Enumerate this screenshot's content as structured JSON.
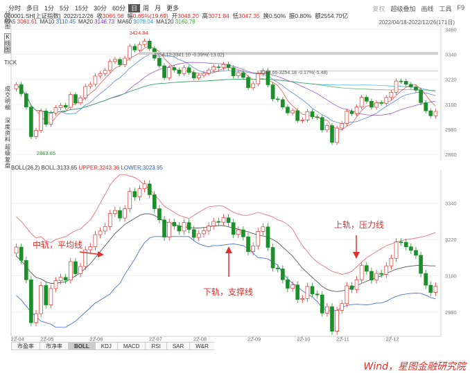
{
  "toolbar": {
    "timeframes": [
      "分时",
      "多日",
      "1分",
      "5分",
      "15分",
      "30分",
      "60分",
      "日",
      "周",
      "月",
      "更多"
    ],
    "active": "日",
    "right": [
      "复权",
      "超级叠加",
      "画线",
      "工具",
      "F9"
    ]
  },
  "info": {
    "code": "000001.SH[上证指数]",
    "date": "2022/12/26",
    "close_label": "收",
    "close": "3065.56",
    "change_label": "幅",
    "change": "0.65%(19.69)",
    "open_label": "开",
    "open": "3048.20",
    "high_label": "高",
    "high": "3071.84",
    "low_label": "低",
    "low": "3047.35",
    "turnover_label": "换",
    "turnover": "0.50%",
    "amp_label": "振",
    "amp": "0.80%",
    "amount_label": "额",
    "amount": "2554.70亿"
  },
  "ma": [
    {
      "label": "MA5",
      "value": "3061.61",
      "color": "#e0312a"
    },
    {
      "label": "MA10",
      "value": "3110.45",
      "color": "#2b6cc4"
    },
    {
      "label": "MA20",
      "value": "3146.73",
      "color": "#7a33b5"
    },
    {
      "label": "MA60",
      "value": "3078.04",
      "color": "#1aa3c9"
    },
    {
      "label": "MA120",
      "value": "3160.78",
      "color": "#3aa33a"
    }
  ],
  "date_range": "2022/04/18-2022/12/26(171日)",
  "side_labels": [
    "分时图",
    "K线图",
    "TICK",
    "成交明细",
    "深度资料",
    "超级复盘"
  ],
  "boll_header": {
    "name": "BOLL(26,2)",
    "boll_label": "BOLL:",
    "boll": "3133.65",
    "upper_label": "UPPER:",
    "upper": "3243.36",
    "lower_label": "LOWER:",
    "lower": "3023.95"
  },
  "price_annotations": {
    "high": "3424.84",
    "low": "2863.65",
    "range1": "3354.12-3341.10 -0.39%(-13.02)",
    "range2": "3269.66-3254.18 -0.17%(-5.48)"
  },
  "annotations": {
    "mid": "中轨，平均线",
    "lower": "下轨，支撑线",
    "upper": "上轨，压力线"
  },
  "tabs": [
    "市盈率",
    "市净率",
    "BOLL",
    "KDJ",
    "MACD",
    "RSI",
    "SAR",
    "W&R"
  ],
  "active_tab": "BOLL",
  "footer": "Wind，星图金融研究院",
  "colors": {
    "up": "#e0312a",
    "down": "#1c8f2a",
    "upper": "#e8707a",
    "mid": "#555555",
    "lower": "#4a72d6"
  },
  "chart_data": [
    {
      "type": "candlestick",
      "title": "",
      "yticks": [
        2860,
        2980,
        3100,
        3220,
        3340,
        3460
      ],
      "ylim": [
        2830,
        3475
      ],
      "x_ticks": [
        "22-04",
        "22-05",
        "22-06",
        "22-07",
        "22-08",
        "22-09",
        "22-10",
        "22-11",
        "22-12"
      ],
      "x": [
        "04-18",
        "04-20",
        "04-22",
        "04-26",
        "04-28",
        "05-05",
        "05-09",
        "05-11",
        "05-13",
        "05-17",
        "05-19",
        "05-23",
        "05-25",
        "05-27",
        "05-31",
        "06-02",
        "06-07",
        "06-09",
        "06-13",
        "06-15",
        "06-17",
        "06-21",
        "06-23",
        "06-27",
        "06-29",
        "07-01",
        "07-05",
        "07-07",
        "07-11",
        "07-13",
        "07-15",
        "07-19",
        "07-21",
        "07-25",
        "07-27",
        "07-29",
        "08-02",
        "08-04",
        "08-08",
        "08-10",
        "08-12",
        "08-16",
        "08-18",
        "08-22",
        "08-24",
        "08-26",
        "08-30",
        "09-01",
        "09-05",
        "09-07",
        "09-09",
        "09-14",
        "09-16",
        "09-20",
        "09-22",
        "09-26",
        "09-28",
        "10-10",
        "10-12",
        "10-14",
        "10-18",
        "10-20",
        "10-24",
        "10-26",
        "10-28",
        "11-01",
        "11-03",
        "11-07",
        "11-09",
        "11-11",
        "11-15",
        "11-17",
        "11-21",
        "11-23",
        "11-25",
        "11-29",
        "12-01",
        "12-05",
        "12-07",
        "12-09",
        "12-13",
        "12-15",
        "12-19",
        "12-21",
        "12-23",
        "12-26"
      ],
      "close": [
        3195,
        3151,
        3087,
        2945,
        2975,
        3068,
        3004,
        3058,
        3084,
        3095,
        3086,
        3147,
        3107,
        3131,
        3186,
        3196,
        3236,
        3248,
        3263,
        3306,
        3316,
        3291,
        3322,
        3379,
        3361,
        3388,
        3404,
        3368,
        3322,
        3285,
        3228,
        3277,
        3265,
        3248,
        3276,
        3253,
        3227,
        3239,
        3249,
        3265,
        3280,
        3277,
        3292,
        3276,
        3237,
        3252,
        3229,
        3180,
        3199,
        3247,
        3262,
        3194,
        3126,
        3123,
        3087,
        3059,
        3070,
        3022,
        3025,
        3065,
        3040,
        3037,
        2977,
        2998,
        2917,
        2986,
        3008,
        3067,
        3055,
        3087,
        3134,
        3115,
        3086,
        3108,
        3105,
        3133,
        3158,
        3212,
        3211,
        3196,
        3184,
        3168,
        3108,
        3069,
        3045,
        3066
      ],
      "high": 3424.84,
      "low": 2863.65
    },
    {
      "type": "line",
      "title": "BOLL(26,2)",
      "yticks": [
        2980,
        3100,
        3220,
        3340
      ],
      "ylim": [
        2900,
        3440
      ],
      "series": [
        {
          "name": "UPPER",
          "values": [
            3295,
            3280,
            3260,
            3240,
            3225,
            3230,
            3215,
            3210,
            3220,
            3225,
            3230,
            3240,
            3250,
            3255,
            3270,
            3285,
            3310,
            3340,
            3370,
            3400,
            3420,
            3435,
            3435,
            3430,
            3425,
            3415,
            3400,
            3385,
            3370,
            3350,
            3330,
            3320,
            3310,
            3300,
            3295,
            3290,
            3300,
            3310,
            3320,
            3328,
            3330,
            3332,
            3330,
            3320,
            3310,
            3305,
            3300,
            3300,
            3305,
            3310,
            3305,
            3300,
            3295,
            3285,
            3280,
            3270,
            3255,
            3225,
            3200,
            3180,
            3160,
            3145,
            3135,
            3125,
            3115,
            3110,
            3105,
            3108,
            3115,
            3130,
            3145,
            3160,
            3170,
            3180,
            3190,
            3200,
            3205,
            3212,
            3215,
            3220,
            3222,
            3225,
            3228,
            3232,
            3238,
            3243
          ]
        },
        {
          "name": "BOLL",
          "values": [
            3165,
            3150,
            3130,
            3110,
            3095,
            3090,
            3080,
            3075,
            3075,
            3078,
            3080,
            3090,
            3100,
            3110,
            3125,
            3140,
            3160,
            3180,
            3200,
            3220,
            3240,
            3255,
            3270,
            3280,
            3290,
            3300,
            3305,
            3305,
            3300,
            3290,
            3280,
            3275,
            3270,
            3265,
            3262,
            3260,
            3258,
            3258,
            3260,
            3262,
            3265,
            3266,
            3266,
            3262,
            3258,
            3254,
            3250,
            3245,
            3240,
            3235,
            3232,
            3228,
            3220,
            3210,
            3195,
            3180,
            3165,
            3145,
            3125,
            3110,
            3095,
            3080,
            3065,
            3055,
            3050,
            3048,
            3050,
            3055,
            3060,
            3068,
            3075,
            3082,
            3088,
            3095,
            3100,
            3108,
            3115,
            3122,
            3126,
            3130,
            3132,
            3134,
            3135,
            3134,
            3133,
            3133
          ]
        },
        {
          "name": "LOWER",
          "values": [
            3035,
            3020,
            3000,
            2980,
            2965,
            2950,
            2945,
            2940,
            2930,
            2930,
            2930,
            2940,
            2950,
            2965,
            2980,
            2995,
            3010,
            3020,
            3030,
            3040,
            3060,
            3075,
            3105,
            3130,
            3155,
            3185,
            3210,
            3225,
            3230,
            3230,
            3230,
            3230,
            3230,
            3230,
            3230,
            3230,
            3216,
            3206,
            3200,
            3196,
            3200,
            3200,
            3202,
            3204,
            3206,
            3203,
            3200,
            3190,
            3175,
            3160,
            3159,
            3156,
            3145,
            3135,
            3110,
            3090,
            3075,
            3065,
            3050,
            3040,
            3030,
            3015,
            2995,
            2985,
            2985,
            2986,
            2995,
            3002,
            3005,
            3006,
            3005,
            3004,
            3006,
            3010,
            3010,
            3016,
            3025,
            3032,
            3037,
            3040,
            3042,
            3043,
            3042,
            3036,
            3028,
            3024
          ]
        }
      ]
    }
  ]
}
